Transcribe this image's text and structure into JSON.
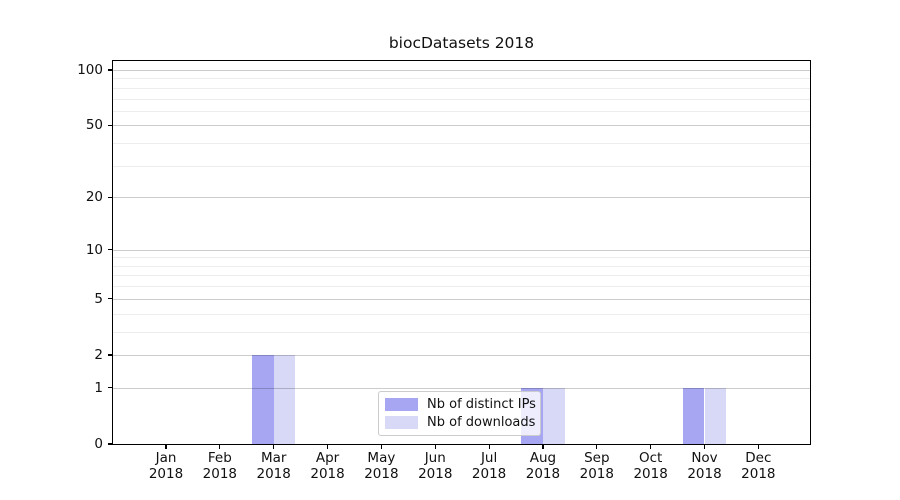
{
  "title": "biocDatasets 2018",
  "chart_data": {
    "type": "bar",
    "title": "biocDatasets 2018",
    "categories": [
      "Jan 2018",
      "Feb 2018",
      "Mar 2018",
      "Apr 2018",
      "May 2018",
      "Jun 2018",
      "Jul 2018",
      "Aug 2018",
      "Sep 2018",
      "Oct 2018",
      "Nov 2018",
      "Dec 2018"
    ],
    "x_tick_line1": [
      "Jan",
      "Feb",
      "Mar",
      "Apr",
      "May",
      "Jun",
      "Jul",
      "Aug",
      "Sep",
      "Oct",
      "Nov",
      "Dec"
    ],
    "x_tick_line2": "2018",
    "series": [
      {
        "name": "Nb of distinct IPs",
        "color": "#a6a6f2",
        "values": [
          0,
          0,
          2,
          0,
          0,
          0,
          0,
          1,
          0,
          0,
          1,
          0
        ]
      },
      {
        "name": "Nb of downloads",
        "color": "#d8d8f7",
        "values": [
          0,
          0,
          2,
          0,
          0,
          0,
          0,
          1,
          0,
          0,
          1,
          0
        ]
      }
    ],
    "ylabel": "",
    "xlabel": "",
    "yscale": "log1p",
    "ylim": [
      0,
      110
    ],
    "yticks": [
      0,
      1,
      2,
      5,
      10,
      20,
      50,
      100
    ],
    "yticks_minor": [
      3,
      4,
      6,
      7,
      8,
      9,
      30,
      40,
      60,
      70,
      80,
      90
    ],
    "grid": true,
    "legend_position": "lower center",
    "bar_group": "paired-adjacent"
  },
  "colors": {
    "background": "#ffffff",
    "axis": "#000000",
    "grid_major": "#cccccc",
    "grid_minor": "#ededed",
    "series_1": "#a6a6f2",
    "series_2": "#d8d8f7",
    "legend_border": "#cccccc"
  }
}
